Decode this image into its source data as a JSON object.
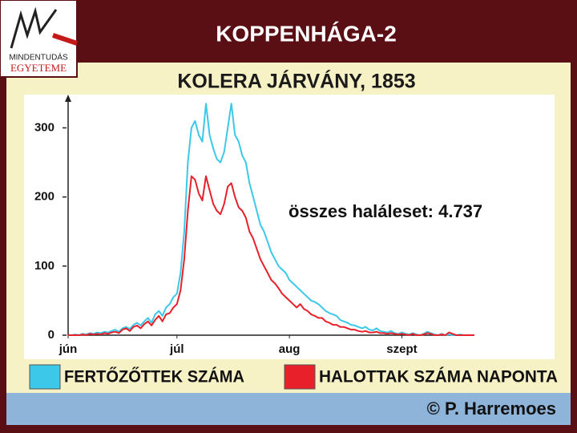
{
  "header": {
    "title": "KOPPENHÁGA-2"
  },
  "logo": {
    "line1": "MINDENTUDÁS",
    "line2": "EGYETEME"
  },
  "chart_data": {
    "type": "line",
    "title": "KOLERA JÁRVÁNY, 1853",
    "annotation": "összes haláleset: 4.737",
    "xlim": [
      0,
      112
    ],
    "xticks": [
      {
        "value": 0,
        "label": "jún"
      },
      {
        "value": 30,
        "label": "júl"
      },
      {
        "value": 61,
        "label": "aug"
      },
      {
        "value": 92,
        "label": "szept"
      }
    ],
    "ylim": [
      0,
      340
    ],
    "yticks": [
      0,
      100,
      200,
      300
    ],
    "series": [
      {
        "name": "FERTŐZŐTTEK SZÁMA",
        "color": "#3cc8e8",
        "values": [
          0,
          0,
          1,
          0,
          2,
          1,
          3,
          2,
          4,
          3,
          5,
          4,
          6,
          8,
          5,
          10,
          12,
          9,
          15,
          18,
          14,
          20,
          25,
          18,
          30,
          35,
          28,
          40,
          45,
          55,
          60,
          90,
          150,
          250,
          300,
          310,
          290,
          280,
          335,
          290,
          270,
          255,
          250,
          265,
          300,
          335,
          290,
          280,
          260,
          250,
          220,
          200,
          180,
          160,
          150,
          135,
          120,
          110,
          100,
          95,
          90,
          80,
          75,
          70,
          65,
          60,
          55,
          50,
          48,
          45,
          40,
          35,
          32,
          30,
          28,
          22,
          20,
          18,
          15,
          14,
          12,
          10,
          12,
          8,
          7,
          10,
          6,
          5,
          4,
          6,
          3,
          2,
          4,
          2,
          1,
          3,
          1,
          0,
          2,
          5,
          3,
          1,
          0,
          2,
          0,
          1,
          0,
          0,
          1,
          0,
          0,
          0,
          0
        ]
      },
      {
        "name": "HALOTTAK SZÁMA NAPONTA",
        "color": "#e8202a",
        "values": [
          0,
          0,
          0,
          0,
          1,
          0,
          2,
          1,
          2,
          1,
          3,
          2,
          4,
          5,
          3,
          8,
          10,
          6,
          12,
          14,
          10,
          16,
          20,
          14,
          22,
          28,
          20,
          30,
          32,
          40,
          45,
          65,
          110,
          180,
          230,
          225,
          205,
          195,
          230,
          210,
          190,
          180,
          175,
          190,
          215,
          220,
          200,
          185,
          180,
          170,
          150,
          140,
          125,
          110,
          100,
          90,
          80,
          75,
          68,
          60,
          55,
          50,
          45,
          40,
          45,
          38,
          35,
          30,
          28,
          25,
          25,
          20,
          18,
          15,
          15,
          12,
          12,
          10,
          8,
          8,
          6,
          5,
          6,
          4,
          4,
          5,
          3,
          3,
          2,
          3,
          2,
          1,
          2,
          1,
          0,
          2,
          0,
          0,
          1,
          3,
          2,
          0,
          0,
          1,
          0,
          4,
          2,
          0,
          0,
          0,
          0,
          0,
          0
        ]
      }
    ]
  },
  "footer": {
    "credit": "© P. Harremoes"
  }
}
